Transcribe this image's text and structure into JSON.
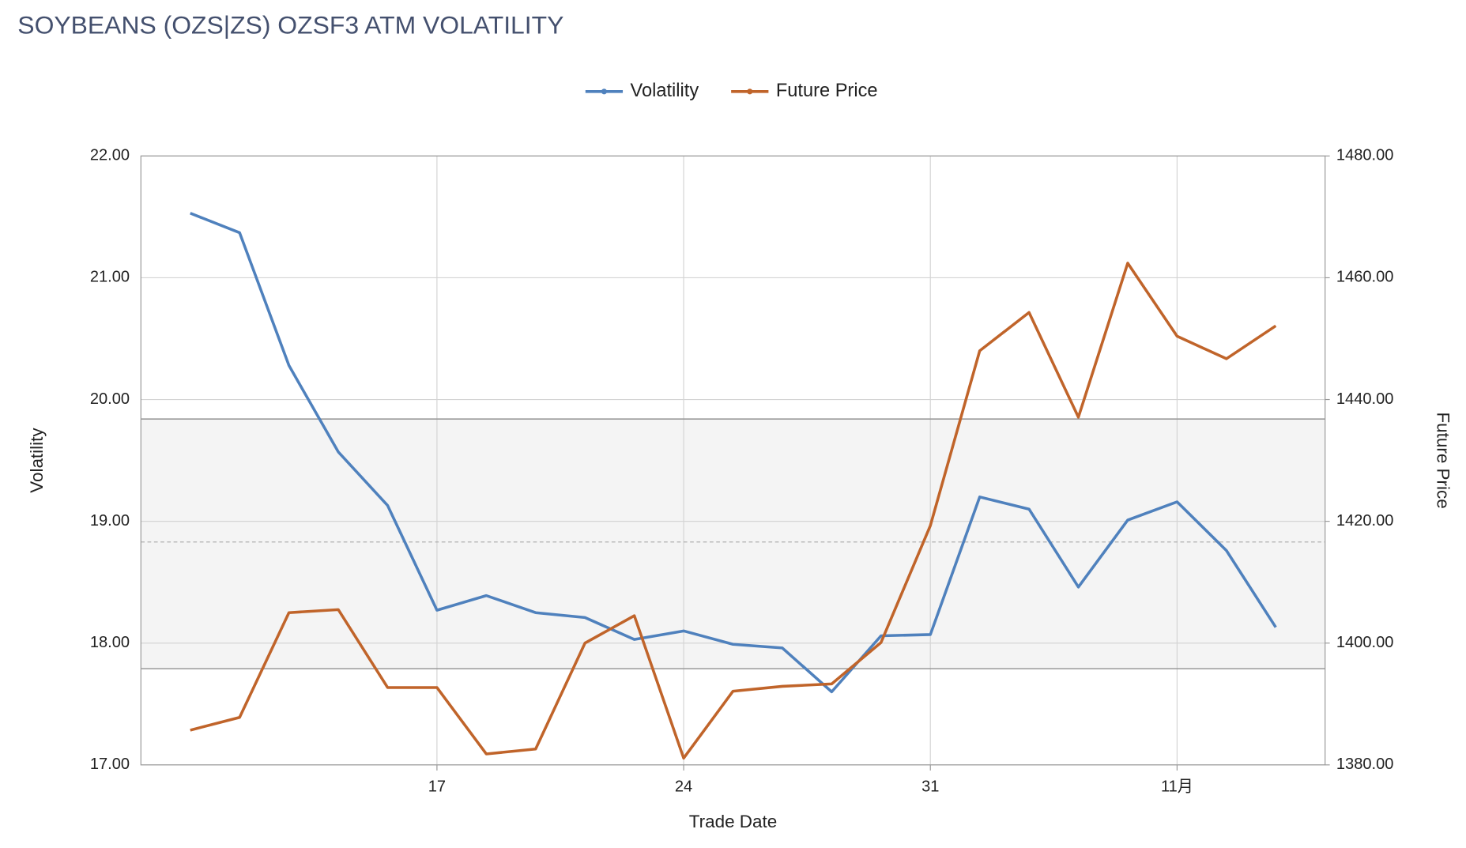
{
  "chart_data": {
    "type": "line",
    "title": "SOYBEANS (OZS|ZS) OZSF3 ATM VOLATILITY",
    "x_label": "Trade Date",
    "y_label": "Volatility",
    "y2_label": "Future Price",
    "categories": [
      null,
      null,
      null,
      null,
      null,
      "17",
      null,
      null,
      null,
      null,
      "24",
      null,
      null,
      null,
      null,
      "31",
      null,
      null,
      null,
      null,
      "11月",
      null,
      null
    ],
    "series": [
      {
        "name": "Volatility",
        "color": "#4f81bd",
        "values": [
          21.53,
          21.37,
          20.28,
          19.57,
          19.13,
          18.27,
          18.39,
          18.25,
          18.21,
          18.03,
          18.1,
          17.99,
          17.96,
          17.6,
          18.06,
          18.07,
          19.2,
          19.1,
          18.46,
          19.01,
          19.16,
          18.76,
          18.13
        ]
      },
      {
        "name": "Future Price",
        "color": "#c0642a",
        "axis": "y2",
        "values": [
          1385.7,
          1387.8,
          1405.0,
          1405.5,
          1392.7,
          1392.7,
          1381.8,
          1382.6,
          1400.0,
          1404.5,
          1381.1,
          1392.1,
          1392.9,
          1393.3,
          1400.1,
          1419.3,
          1448.0,
          1454.3,
          1437.1,
          1462.4,
          1450.4,
          1446.7,
          1452.1
        ]
      }
    ],
    "band": {
      "upper": 19.84,
      "lower": 17.79,
      "mean": 18.83
    },
    "ylim": [
      17,
      22
    ],
    "yticks": [
      {
        "value": 17,
        "label": "17.00"
      },
      {
        "value": 18,
        "label": "18.00"
      },
      {
        "value": 19,
        "label": "19.00"
      },
      {
        "value": 20,
        "label": "20.00"
      },
      {
        "value": 21,
        "label": "21.00"
      },
      {
        "value": 22,
        "label": "22.00"
      }
    ],
    "y2lim": [
      1380,
      1480
    ],
    "y2ticks": [
      {
        "value": 1380,
        "label": "1380.00"
      },
      {
        "value": 1400,
        "label": "1400.00"
      },
      {
        "value": 1420,
        "label": "1420.00"
      },
      {
        "value": 1440,
        "label": "1440.00"
      },
      {
        "value": 1460,
        "label": "1460.00"
      },
      {
        "value": 1480,
        "label": "1480.00"
      }
    ],
    "grid": true,
    "legend": "top"
  }
}
